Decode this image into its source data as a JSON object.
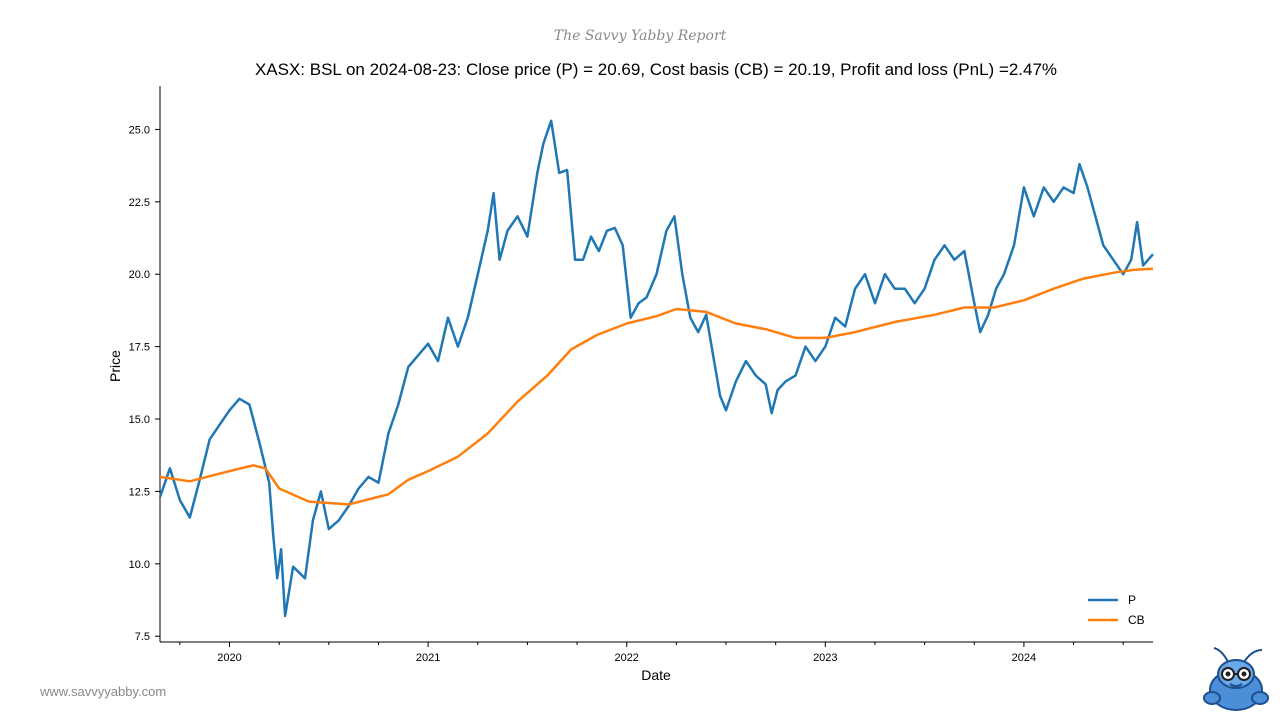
{
  "header": "The Savvy Yabby Report",
  "website": "www.savvyyabby.com",
  "logo_icon": "yabby-mascot-icon",
  "chart_data": {
    "type": "line",
    "title": "XASX: BSL on 2024-08-23: Close price (P) = 20.69, Cost basis (CB) = 20.19, Profit and loss (PnL) =2.47%",
    "xlabel": "Date",
    "ylabel": "Price",
    "x_tick_labels": [
      "2020",
      "2021",
      "2022",
      "2023",
      "2024"
    ],
    "y_tick_labels": [
      "7.5",
      "10.0",
      "12.5",
      "15.0",
      "17.5",
      "20.0",
      "22.5",
      "25.0"
    ],
    "xlim": [
      2019.65,
      2024.65
    ],
    "ylim": [
      7.3,
      26.5
    ],
    "legend_position": "bottom-right",
    "series": [
      {
        "name": "P",
        "color": "#1f77b4",
        "points": [
          [
            2019.65,
            12.3
          ],
          [
            2019.7,
            13.3
          ],
          [
            2019.75,
            12.2
          ],
          [
            2019.8,
            11.6
          ],
          [
            2019.85,
            12.9
          ],
          [
            2019.9,
            14.3
          ],
          [
            2019.95,
            14.8
          ],
          [
            2020.0,
            15.3
          ],
          [
            2020.05,
            15.7
          ],
          [
            2020.1,
            15.5
          ],
          [
            2020.15,
            14.2
          ],
          [
            2020.2,
            12.8
          ],
          [
            2020.22,
            11.0
          ],
          [
            2020.24,
            9.5
          ],
          [
            2020.26,
            10.5
          ],
          [
            2020.28,
            8.2
          ],
          [
            2020.32,
            9.9
          ],
          [
            2020.38,
            9.5
          ],
          [
            2020.42,
            11.5
          ],
          [
            2020.46,
            12.5
          ],
          [
            2020.5,
            11.2
          ],
          [
            2020.55,
            11.5
          ],
          [
            2020.6,
            12.0
          ],
          [
            2020.65,
            12.6
          ],
          [
            2020.7,
            13.0
          ],
          [
            2020.75,
            12.8
          ],
          [
            2020.8,
            14.5
          ],
          [
            2020.85,
            15.5
          ],
          [
            2020.9,
            16.8
          ],
          [
            2020.95,
            17.2
          ],
          [
            2021.0,
            17.6
          ],
          [
            2021.05,
            17.0
          ],
          [
            2021.1,
            18.5
          ],
          [
            2021.15,
            17.5
          ],
          [
            2021.2,
            18.5
          ],
          [
            2021.25,
            20.0
          ],
          [
            2021.3,
            21.5
          ],
          [
            2021.33,
            22.8
          ],
          [
            2021.36,
            20.5
          ],
          [
            2021.4,
            21.5
          ],
          [
            2021.45,
            22.0
          ],
          [
            2021.5,
            21.3
          ],
          [
            2021.55,
            23.5
          ],
          [
            2021.58,
            24.5
          ],
          [
            2021.62,
            25.3
          ],
          [
            2021.66,
            23.5
          ],
          [
            2021.7,
            23.6
          ],
          [
            2021.74,
            20.5
          ],
          [
            2021.78,
            20.5
          ],
          [
            2021.82,
            21.3
          ],
          [
            2021.86,
            20.8
          ],
          [
            2021.9,
            21.5
          ],
          [
            2021.94,
            21.6
          ],
          [
            2021.98,
            21.0
          ],
          [
            2022.02,
            18.5
          ],
          [
            2022.06,
            19.0
          ],
          [
            2022.1,
            19.2
          ],
          [
            2022.15,
            20.0
          ],
          [
            2022.2,
            21.5
          ],
          [
            2022.24,
            22.0
          ],
          [
            2022.28,
            20.0
          ],
          [
            2022.32,
            18.5
          ],
          [
            2022.36,
            18.0
          ],
          [
            2022.4,
            18.6
          ],
          [
            2022.44,
            17.0
          ],
          [
            2022.47,
            15.8
          ],
          [
            2022.5,
            15.3
          ],
          [
            2022.55,
            16.3
          ],
          [
            2022.6,
            17.0
          ],
          [
            2022.65,
            16.5
          ],
          [
            2022.7,
            16.2
          ],
          [
            2022.73,
            15.2
          ],
          [
            2022.76,
            16.0
          ],
          [
            2022.8,
            16.3
          ],
          [
            2022.85,
            16.5
          ],
          [
            2022.9,
            17.5
          ],
          [
            2022.95,
            17.0
          ],
          [
            2023.0,
            17.5
          ],
          [
            2023.05,
            18.5
          ],
          [
            2023.1,
            18.2
          ],
          [
            2023.15,
            19.5
          ],
          [
            2023.2,
            20.0
          ],
          [
            2023.25,
            19.0
          ],
          [
            2023.3,
            20.0
          ],
          [
            2023.35,
            19.5
          ],
          [
            2023.4,
            19.5
          ],
          [
            2023.45,
            19.0
          ],
          [
            2023.5,
            19.5
          ],
          [
            2023.55,
            20.5
          ],
          [
            2023.6,
            21.0
          ],
          [
            2023.65,
            20.5
          ],
          [
            2023.7,
            20.8
          ],
          [
            2023.75,
            19.0
          ],
          [
            2023.78,
            18.0
          ],
          [
            2023.82,
            18.6
          ],
          [
            2023.86,
            19.5
          ],
          [
            2023.9,
            20.0
          ],
          [
            2023.95,
            21.0
          ],
          [
            2024.0,
            23.0
          ],
          [
            2024.05,
            22.0
          ],
          [
            2024.1,
            23.0
          ],
          [
            2024.15,
            22.5
          ],
          [
            2024.2,
            23.0
          ],
          [
            2024.25,
            22.8
          ],
          [
            2024.28,
            23.8
          ],
          [
            2024.32,
            23.0
          ],
          [
            2024.36,
            22.0
          ],
          [
            2024.4,
            21.0
          ],
          [
            2024.45,
            20.5
          ],
          [
            2024.5,
            20.0
          ],
          [
            2024.54,
            20.5
          ],
          [
            2024.57,
            21.8
          ],
          [
            2024.6,
            20.3
          ],
          [
            2024.65,
            20.69
          ]
        ]
      },
      {
        "name": "CB",
        "color": "#ff7f0e",
        "points": [
          [
            2019.65,
            13.0
          ],
          [
            2019.8,
            12.85
          ],
          [
            2020.0,
            13.2
          ],
          [
            2020.12,
            13.4
          ],
          [
            2020.18,
            13.3
          ],
          [
            2020.25,
            12.6
          ],
          [
            2020.4,
            12.15
          ],
          [
            2020.6,
            12.05
          ],
          [
            2020.8,
            12.4
          ],
          [
            2020.9,
            12.9
          ],
          [
            2021.0,
            13.2
          ],
          [
            2021.15,
            13.7
          ],
          [
            2021.3,
            14.5
          ],
          [
            2021.45,
            15.6
          ],
          [
            2021.6,
            16.5
          ],
          [
            2021.72,
            17.4
          ],
          [
            2021.85,
            17.9
          ],
          [
            2022.0,
            18.3
          ],
          [
            2022.15,
            18.55
          ],
          [
            2022.25,
            18.8
          ],
          [
            2022.4,
            18.7
          ],
          [
            2022.55,
            18.3
          ],
          [
            2022.7,
            18.1
          ],
          [
            2022.85,
            17.8
          ],
          [
            2023.0,
            17.8
          ],
          [
            2023.15,
            18.0
          ],
          [
            2023.35,
            18.35
          ],
          [
            2023.55,
            18.6
          ],
          [
            2023.7,
            18.85
          ],
          [
            2023.85,
            18.85
          ],
          [
            2024.0,
            19.1
          ],
          [
            2024.15,
            19.5
          ],
          [
            2024.3,
            19.85
          ],
          [
            2024.45,
            20.05
          ],
          [
            2024.55,
            20.15
          ],
          [
            2024.65,
            20.19
          ]
        ]
      }
    ]
  }
}
